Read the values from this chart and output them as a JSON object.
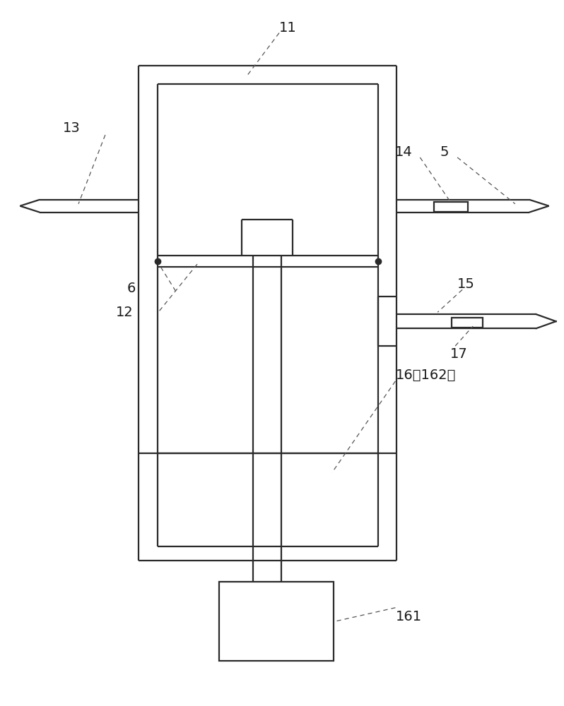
{
  "bg_color": "#ffffff",
  "line_color": "#2a2a2a",
  "lw": 1.6,
  "figsize": [
    7.98,
    10.0
  ],
  "dpi": 100
}
